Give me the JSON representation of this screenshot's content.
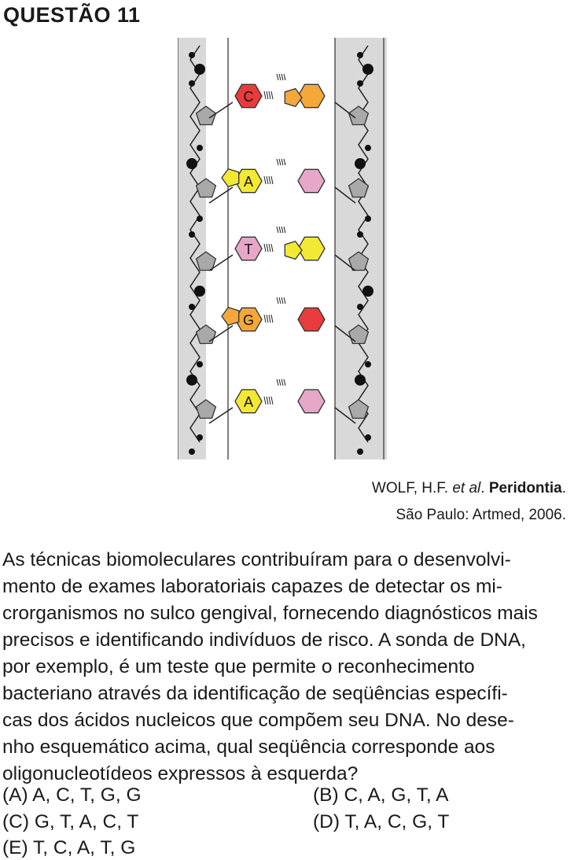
{
  "header": {
    "title": "QUESTÃO 11"
  },
  "figure": {
    "pairs": [
      {
        "left_label": "C",
        "left_color": "#e83b3b",
        "right_color": "#f4a83a"
      },
      {
        "left_label": "A",
        "left_color": "#f3e935",
        "right_color": "#e7a7c8"
      },
      {
        "left_label": "T",
        "left_color": "#e7a7c8",
        "right_color": "#f3e935"
      },
      {
        "left_label": "G",
        "left_color": "#f4a83a",
        "right_color": "#e83b3b"
      },
      {
        "left_label": "A",
        "left_color": "#f3e935",
        "right_color": "#e7a7c8"
      }
    ]
  },
  "citation": {
    "author": "WOLF, H.F. ",
    "etal": "et al",
    "dot": ". ",
    "book": "Peridontia",
    "end": ".",
    "line2": "São Paulo: Artmed, 2006."
  },
  "question": {
    "lines": [
      "As técnicas biomoleculares contribuíram para o desenvolvi-",
      "mento de exames laboratoriais capazes de detectar os mi-",
      "crorganismos no sulco gengival, fornecendo diagnósticos mais",
      "precisos e identificando indivíduos de risco. A sonda de DNA,",
      "por exemplo, é um teste que permite o reconhecimento",
      "bacteriano através da identificação de seqüências específi-",
      "cas dos ácidos nucleicos que compõem seu DNA. No dese-",
      "nho esquemático acima, qual seqüência corresponde aos",
      "oligonucleotídeos expressos à esquerda?"
    ]
  },
  "options": {
    "A": "(A)  A, C, T, G, G",
    "B": "(B)  C, A, G, T, A",
    "C": "(C)  G, T, A, C, T",
    "D": "(D)  T, A, C, G, T",
    "E": "(E)  T, C, A, T, G"
  }
}
